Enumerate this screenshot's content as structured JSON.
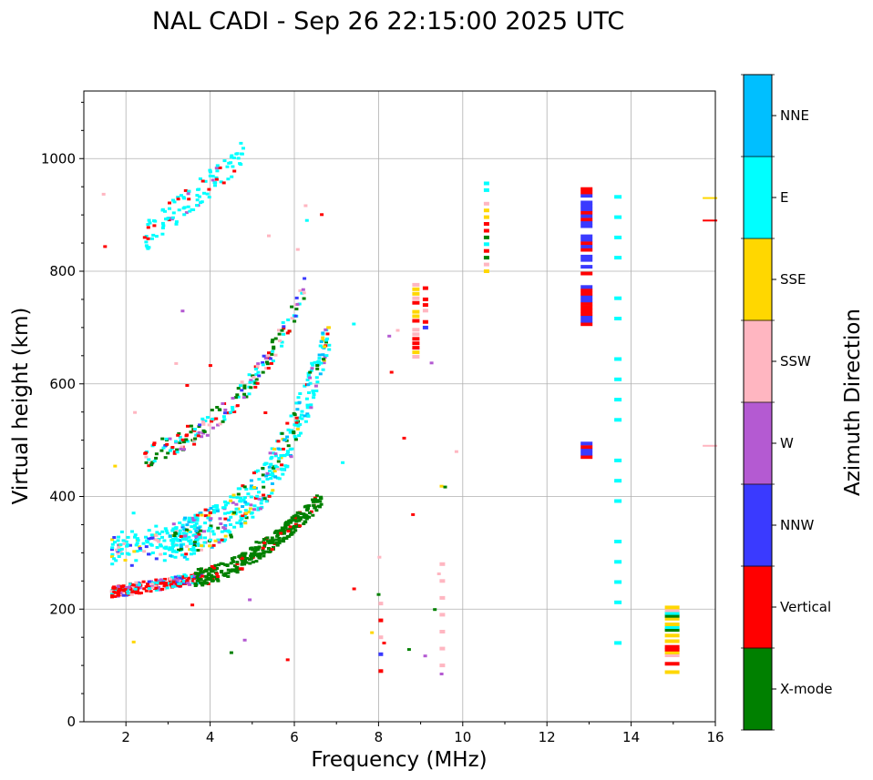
{
  "chart_data": {
    "type": "scatter",
    "title": "NAL CADI - Sep 26 22:15:00 2025 UTC",
    "xlabel": "Frequency (MHz)",
    "ylabel": "Virtual height (km)",
    "xlim": [
      1,
      16
    ],
    "ylim": [
      0,
      1120
    ],
    "xticks": [
      2,
      4,
      6,
      8,
      10,
      12,
      14,
      16
    ],
    "yticks": [
      0,
      200,
      400,
      600,
      800,
      1000
    ],
    "grid": true,
    "colorbar": {
      "label": "Azimuth Direction",
      "placement": "right",
      "categories": [
        "X-mode",
        "Vertical",
        "NNW",
        "W",
        "SSW",
        "SSE",
        "E",
        "NNE"
      ],
      "colors": [
        "#008000",
        "#ff0000",
        "#3a3aff",
        "#b45ad2",
        "#ffb6c1",
        "#ffd700",
        "#00ffff",
        "#00bfff"
      ]
    },
    "features": [
      {
        "name": "low-layer-trace",
        "freq": [
          1.6,
          3.8
        ],
        "height": [
          200,
          310
        ],
        "dir": "mixed"
      },
      {
        "name": "f-layer-xmode-trace",
        "freq": [
          3.8,
          6.6
        ],
        "height": [
          240,
          420
        ],
        "dir": "X-mode"
      },
      {
        "name": "f-layer-upper-spread",
        "freq": [
          3.0,
          6.8
        ],
        "height": [
          300,
          700
        ],
        "dir": "E"
      },
      {
        "name": "multihop-trace",
        "freq": [
          2.4,
          6.2
        ],
        "height": [
          470,
          780
        ],
        "dir": "mixed"
      },
      {
        "name": "high-altitude-echo",
        "freq": [
          2.4,
          4.8
        ],
        "height": [
          860,
          1015
        ],
        "dir": "E"
      },
      {
        "name": "interference-column-8_9",
        "freq": [
          8.8,
          9.1
        ],
        "height": [
          640,
          780
        ],
        "dir": "mixed"
      },
      {
        "name": "interference-column-10_6",
        "freq": [
          10.5,
          10.6
        ],
        "height": [
          800,
          960
        ],
        "dir": "mixed"
      },
      {
        "name": "interference-column-12_9",
        "freq": [
          12.8,
          13.1
        ],
        "height": [
          470,
          950
        ],
        "dir": "NNW/Vertical"
      },
      {
        "name": "interference-column-13_7",
        "freq": [
          13.6,
          13.8
        ],
        "height": [
          140,
          980
        ],
        "dir": "E"
      },
      {
        "name": "interference-column-15_0",
        "freq": [
          14.8,
          15.2
        ],
        "height": [
          85,
          205
        ],
        "dir": "mixed"
      }
    ]
  }
}
